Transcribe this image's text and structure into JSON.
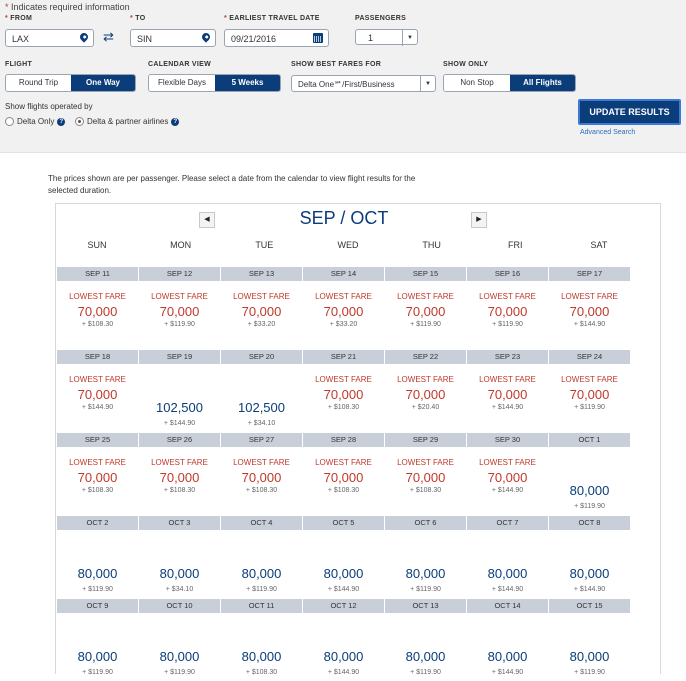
{
  "form": {
    "required_note": "Indicates required information",
    "from_label": "FROM",
    "to_label": "TO",
    "date_label": "EARLIEST TRAVEL DATE",
    "passengers_label": "PASSENGERS",
    "from_value": "LAX",
    "to_value": "SIN",
    "date_value": "09/21/2016",
    "passengers_value": "1",
    "flight_label": "FLIGHT",
    "flight_options": [
      "Round Trip",
      "One Way"
    ],
    "flight_selected": "One Way",
    "calview_label": "CALENDAR VIEW",
    "calview_options": [
      "Flexible Days",
      "5 Weeks"
    ],
    "calview_selected": "5 Weeks",
    "fares_label": "SHOW BEST FARES FOR",
    "fares_value": "Delta One℠/First/Business",
    "showonly_label": "SHOW ONLY",
    "showonly_options": [
      "Non Stop",
      "All Flights"
    ],
    "showonly_selected": "All Flights",
    "operated_label": "Show flights operated by",
    "operated_options": [
      "Delta Only",
      "Delta & partner airlines"
    ],
    "operated_selected": "Delta & partner airlines",
    "update_button": "UPDATE RESULTS",
    "advanced_link": "Advanced Search"
  },
  "intro_text": "The prices shown are per passenger. Please select a date from the calendar to view flight results for the selected duration.",
  "calendar": {
    "month_title": "SEP / OCT",
    "lowest_fare_label": "LOWEST FARE",
    "days_of_week": [
      "SUN",
      "MON",
      "TUE",
      "WED",
      "THU",
      "FRI",
      "SAT"
    ],
    "weeks": [
      [
        {
          "date": "SEP 11",
          "points": "70,000",
          "tax": "+ $108.30",
          "lowest": true
        },
        {
          "date": "SEP 12",
          "points": "70,000",
          "tax": "+ $119.90",
          "lowest": true
        },
        {
          "date": "SEP 13",
          "points": "70,000",
          "tax": "+ $33.20",
          "lowest": true
        },
        {
          "date": "SEP 14",
          "points": "70,000",
          "tax": "+ $33.20",
          "lowest": true
        },
        {
          "date": "SEP 15",
          "points": "70,000",
          "tax": "+ $119.90",
          "lowest": true
        },
        {
          "date": "SEP 16",
          "points": "70,000",
          "tax": "+ $119.90",
          "lowest": true
        },
        {
          "date": "SEP 17",
          "points": "70,000",
          "tax": "+ $144.90",
          "lowest": true
        }
      ],
      [
        {
          "date": "SEP 18",
          "points": "70,000",
          "tax": "+ $144.90",
          "lowest": true
        },
        {
          "date": "SEP 19",
          "points": "102,500",
          "tax": "+ $144.90",
          "lowest": false
        },
        {
          "date": "SEP 20",
          "points": "102,500",
          "tax": "+ $34.10",
          "lowest": false
        },
        {
          "date": "SEP 21",
          "points": "70,000",
          "tax": "+ $108.30",
          "lowest": true
        },
        {
          "date": "SEP 22",
          "points": "70,000",
          "tax": "+ $20.40",
          "lowest": true
        },
        {
          "date": "SEP 23",
          "points": "70,000",
          "tax": "+ $144.90",
          "lowest": true
        },
        {
          "date": "SEP 24",
          "points": "70,000",
          "tax": "+ $119.90",
          "lowest": true
        }
      ],
      [
        {
          "date": "SEP 25",
          "points": "70,000",
          "tax": "+ $108.30",
          "lowest": true
        },
        {
          "date": "SEP 26",
          "points": "70,000",
          "tax": "+ $108.30",
          "lowest": true
        },
        {
          "date": "SEP 27",
          "points": "70,000",
          "tax": "+ $108.30",
          "lowest": true
        },
        {
          "date": "SEP 28",
          "points": "70,000",
          "tax": "+ $108.30",
          "lowest": true
        },
        {
          "date": "SEP 29",
          "points": "70,000",
          "tax": "+ $108.30",
          "lowest": true
        },
        {
          "date": "SEP 30",
          "points": "70,000",
          "tax": "+ $144.90",
          "lowest": true
        },
        {
          "date": "OCT 1",
          "points": "80,000",
          "tax": "+ $119.90",
          "lowest": false
        }
      ],
      [
        {
          "date": "OCT 2",
          "points": "80,000",
          "tax": "+ $119.90",
          "lowest": false
        },
        {
          "date": "OCT 3",
          "points": "80,000",
          "tax": "+ $34.10",
          "lowest": false
        },
        {
          "date": "OCT 4",
          "points": "80,000",
          "tax": "+ $119.90",
          "lowest": false
        },
        {
          "date": "OCT 5",
          "points": "80,000",
          "tax": "+ $144.90",
          "lowest": false
        },
        {
          "date": "OCT 6",
          "points": "80,000",
          "tax": "+ $119.90",
          "lowest": false
        },
        {
          "date": "OCT 7",
          "points": "80,000",
          "tax": "+ $144.90",
          "lowest": false
        },
        {
          "date": "OCT 8",
          "points": "80,000",
          "tax": "+ $144.90",
          "lowest": false
        }
      ],
      [
        {
          "date": "OCT 9",
          "points": "80,000",
          "tax": "+ $119.90",
          "lowest": false
        },
        {
          "date": "OCT 10",
          "points": "80,000",
          "tax": "+ $119.90",
          "lowest": false
        },
        {
          "date": "OCT 11",
          "points": "80,000",
          "tax": "+ $108.30",
          "lowest": false
        },
        {
          "date": "OCT 12",
          "points": "80,000",
          "tax": "+ $144.90",
          "lowest": false
        },
        {
          "date": "OCT 13",
          "points": "80,000",
          "tax": "+ $119.90",
          "lowest": false
        },
        {
          "date": "OCT 14",
          "points": "80,000",
          "tax": "+ $144.90",
          "lowest": false
        },
        {
          "date": "OCT 15",
          "points": "80,000",
          "tax": "+ $119.90",
          "lowest": false
        }
      ]
    ]
  }
}
